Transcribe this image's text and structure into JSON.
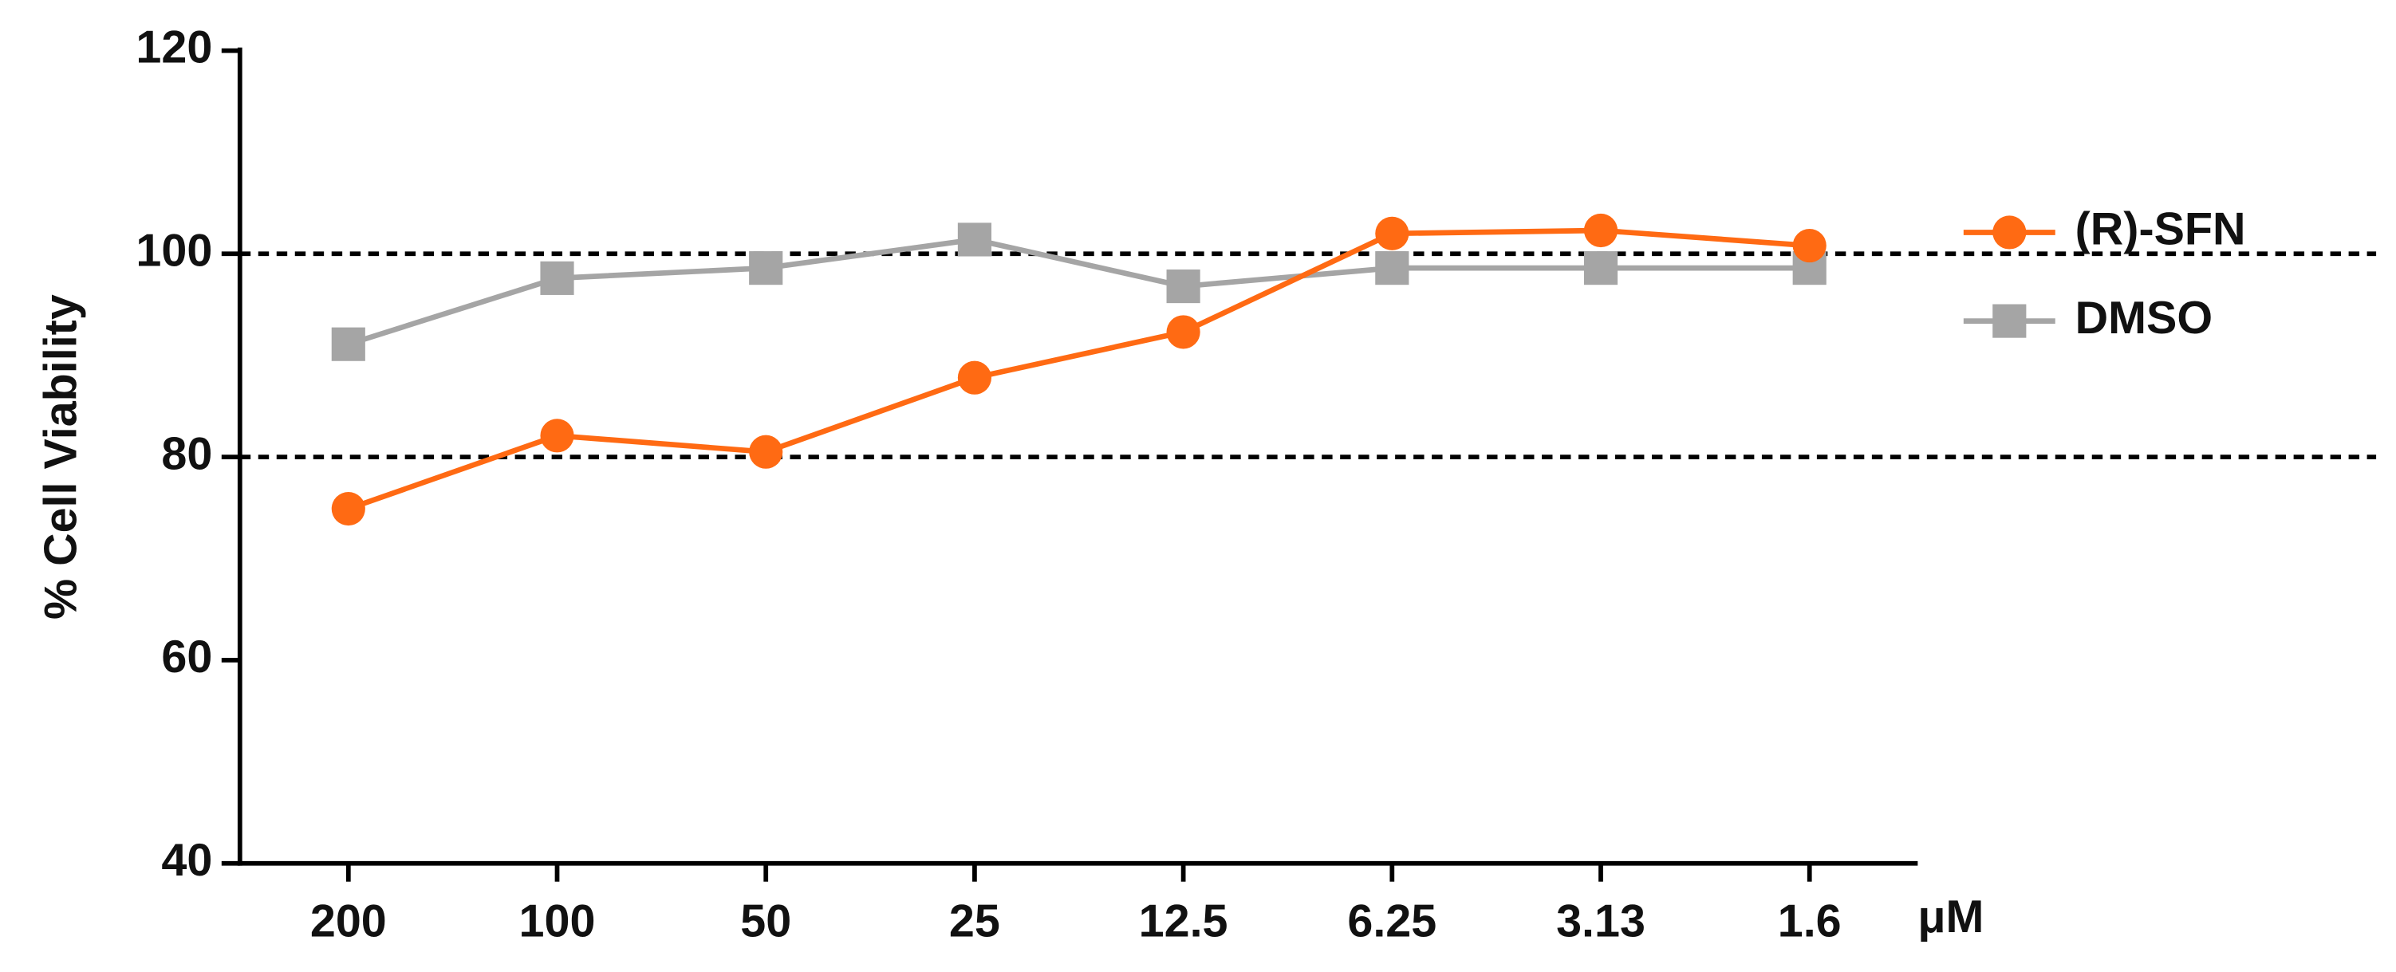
{
  "chart_data": {
    "type": "line",
    "y_label": "% Cell Viability",
    "x_label": "μM",
    "categories": [
      "200",
      "100",
      "50",
      "25",
      "12.5",
      "6.25",
      "3.13",
      "1.6"
    ],
    "series": [
      {
        "name": "(R)-SFN",
        "color": "#ff6a13",
        "marker": "circle",
        "values": [
          74.9,
          82.1,
          80.5,
          87.8,
          92.3,
          102,
          102.3,
          100.8
        ]
      },
      {
        "name": "DMSO",
        "color": "#a5a5a5",
        "marker": "square",
        "values": [
          91.1,
          97.6,
          98.6,
          101.4,
          96.8,
          98.6,
          98.6,
          98.6
        ]
      }
    ],
    "ylim": [
      40,
      120
    ],
    "yticks": [
      40,
      60,
      80,
      100,
      120
    ],
    "reference_lines": [
      80,
      100
    ],
    "legend": "right"
  }
}
